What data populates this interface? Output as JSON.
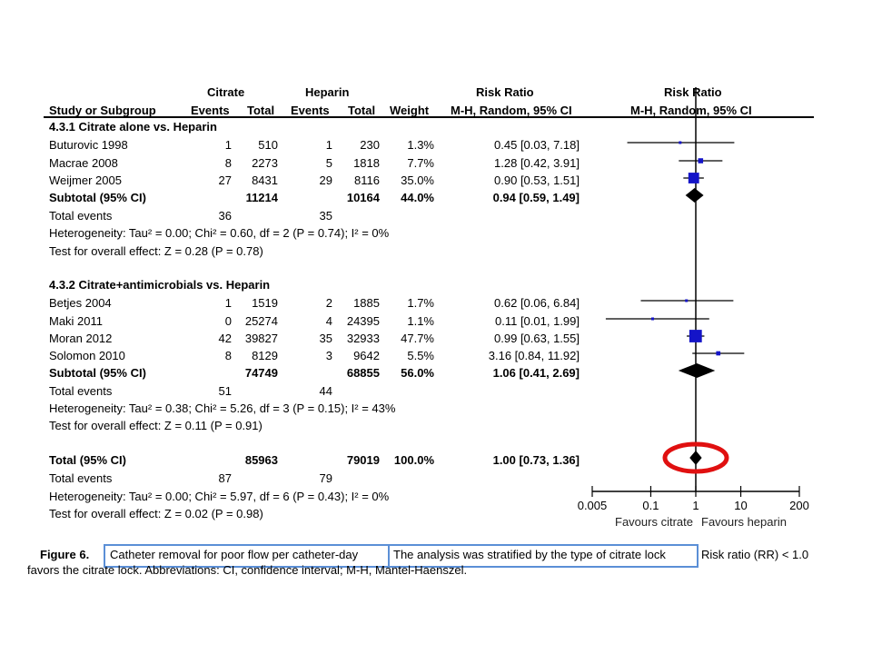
{
  "headers": {
    "group1": "Citrate",
    "group2": "Heparin",
    "rr_text": "Risk Ratio",
    "rr_plot": "Risk Ratio",
    "study": "Study or Subgroup",
    "events1": "Events",
    "total1": "Total",
    "events2": "Events",
    "total2": "Total",
    "weight": "Weight",
    "method_text": "M-H, Random, 95% CI",
    "method_plot": "M-H, Random, 95% CI"
  },
  "rows": [
    {
      "type": "subgroup",
      "label": "4.3.1 Citrate alone vs. Heparin"
    },
    {
      "type": "study",
      "label": "Buturovic 1998",
      "e1": "1",
      "n1": "510",
      "e2": "1",
      "n2": "230",
      "w": "1.3%",
      "ci": "0.45 [0.03, 7.18]"
    },
    {
      "type": "study",
      "label": "Macrae 2008",
      "e1": "8",
      "n1": "2273",
      "e2": "5",
      "n2": "1818",
      "w": "7.7%",
      "ci": "1.28 [0.42, 3.91]"
    },
    {
      "type": "study",
      "label": "Weijmer 2005",
      "e1": "27",
      "n1": "8431",
      "e2": "29",
      "n2": "8116",
      "w": "35.0%",
      "ci": "0.90 [0.53, 1.51]"
    },
    {
      "type": "subtotal",
      "label": "Subtotal (95% CI)",
      "n1": "11214",
      "n2": "10164",
      "w": "44.0%",
      "ci": "0.94 [0.59, 1.49]"
    },
    {
      "type": "events",
      "label": "Total events",
      "e1": "36",
      "e2": "35"
    },
    {
      "type": "note",
      "label": "Heterogeneity: Tau² = 0.00; Chi² = 0.60, df = 2 (P = 0.74); I² = 0%"
    },
    {
      "type": "note",
      "label": "Test for overall effect: Z = 0.28 (P = 0.78)"
    },
    {
      "type": "subgroup",
      "label": "4.3.2 Citrate+antimicrobials vs. Heparin"
    },
    {
      "type": "study",
      "label": "Betjes 2004",
      "e1": "1",
      "n1": "1519",
      "e2": "2",
      "n2": "1885",
      "w": "1.7%",
      "ci": "0.62 [0.06, 6.84]"
    },
    {
      "type": "study",
      "label": "Maki 2011",
      "e1": "0",
      "n1": "25274",
      "e2": "4",
      "n2": "24395",
      "w": "1.1%",
      "ci": "0.11 [0.01, 1.99]"
    },
    {
      "type": "study",
      "label": "Moran 2012",
      "e1": "42",
      "n1": "39827",
      "e2": "35",
      "n2": "32933",
      "w": "47.7%",
      "ci": "0.99 [0.63, 1.55]"
    },
    {
      "type": "study",
      "label": "Solomon 2010",
      "e1": "8",
      "n1": "8129",
      "e2": "3",
      "n2": "9642",
      "w": "5.5%",
      "ci": "3.16 [0.84, 11.92]"
    },
    {
      "type": "subtotal",
      "label": "Subtotal (95% CI)",
      "n1": "74749",
      "n2": "68855",
      "w": "56.0%",
      "ci": "1.06 [0.41, 2.69]"
    },
    {
      "type": "events",
      "label": "Total events",
      "e1": "51",
      "e2": "44"
    },
    {
      "type": "note",
      "label": "Heterogeneity: Tau² = 0.38; Chi² = 5.26, df = 3 (P = 0.15); I² = 43%"
    },
    {
      "type": "note",
      "label": "Test for overall effect: Z = 0.11 (P = 0.91)"
    },
    {
      "type": "total",
      "label": "Total (95% CI)",
      "n1": "85963",
      "n2": "79019",
      "w": "100.0%",
      "ci": "1.00 [0.73, 1.36]"
    },
    {
      "type": "events",
      "label": "Total events",
      "e1": "87",
      "e2": "79"
    },
    {
      "type": "note",
      "label": "Heterogeneity: Tau² = 0.00; Chi² = 5.97, df = 6 (P = 0.43); I² = 0%"
    },
    {
      "type": "note",
      "label": "Test for overall effect: Z = 0.02 (P = 0.98)"
    }
  ],
  "chart_data": {
    "type": "forest",
    "scale": "log",
    "xlim": [
      0.005,
      200
    ],
    "ticks": [
      "0.005",
      "0.1",
      "1",
      "10",
      "200"
    ],
    "tick_values": [
      0.005,
      0.1,
      1,
      10,
      200
    ],
    "favours_left": "Favours citrate",
    "favours_right": "Favours heparin",
    "studies": [
      {
        "name": "Buturovic 1998",
        "rr": 0.45,
        "lo": 0.03,
        "hi": 7.18,
        "weight": 1.3
      },
      {
        "name": "Macrae 2008",
        "rr": 1.28,
        "lo": 0.42,
        "hi": 3.91,
        "weight": 7.7
      },
      {
        "name": "Weijmer 2005",
        "rr": 0.9,
        "lo": 0.53,
        "hi": 1.51,
        "weight": 35.0
      },
      {
        "name": "Betjes 2004",
        "rr": 0.62,
        "lo": 0.06,
        "hi": 6.84,
        "weight": 1.7
      },
      {
        "name": "Maki 2011",
        "rr": 0.11,
        "lo": 0.01,
        "hi": 1.99,
        "weight": 1.1
      },
      {
        "name": "Moran 2012",
        "rr": 0.99,
        "lo": 0.63,
        "hi": 1.55,
        "weight": 47.7
      },
      {
        "name": "Solomon 2010",
        "rr": 3.16,
        "lo": 0.84,
        "hi": 11.92,
        "weight": 5.5
      }
    ],
    "summaries": [
      {
        "name": "Subtotal (95% CI)",
        "rr": 0.94,
        "lo": 0.59,
        "hi": 1.49
      },
      {
        "name": "Subtotal (95% CI)",
        "rr": 1.06,
        "lo": 0.41,
        "hi": 2.69
      },
      {
        "name": "Total (95% CI)",
        "rr": 1.0,
        "lo": 0.73,
        "hi": 1.36
      }
    ],
    "colors": {
      "square": "#1414c8",
      "diamond": "#000000",
      "highlight": "#e01010"
    }
  },
  "caption": {
    "label": "Figure 6.",
    "box1": "Catheter removal for poor flow per catheter-day",
    "box2": "The analysis was stratified by the type of citrate lock",
    "rest1": "Risk ratio (RR) < 1.0",
    "line2": "favors the citrate lock. Abbreviations: CI, confidence interval; M-H, Mantel-Haenszel."
  },
  "colors": {
    "highlight_box": "#5b8fd6"
  }
}
